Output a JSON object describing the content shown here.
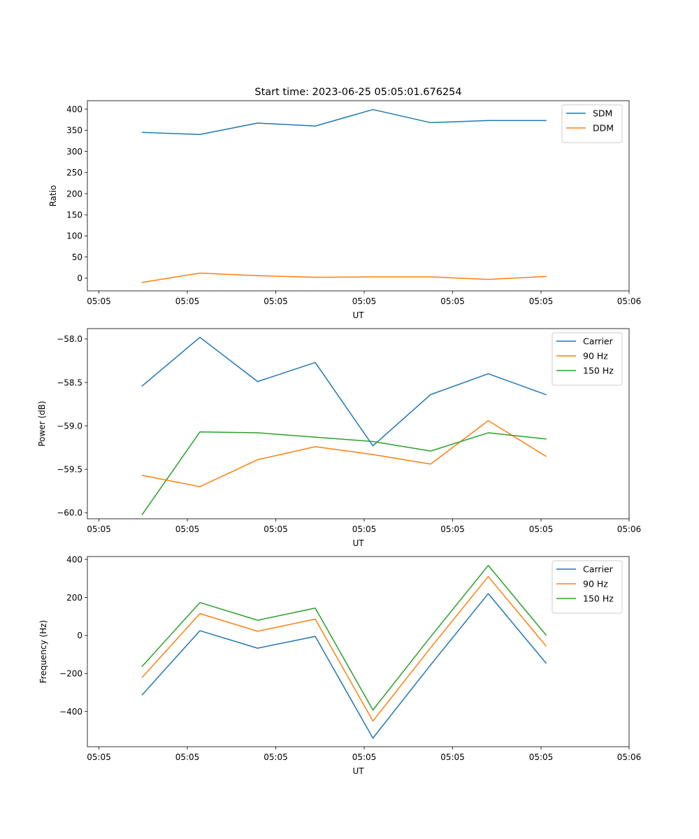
{
  "figure_title": "Start time: 2023-06-25 05:05:01.676254",
  "colors": {
    "blue": "#1f77b4",
    "orange": "#ff7f0e",
    "green": "#2ca02c"
  },
  "chart_data": [
    {
      "type": "line",
      "title": "Start time: 2023-06-25 05:05:01.676254",
      "xlabel": "UT",
      "ylabel": "Ratio",
      "x_tick_labels": [
        "05:05",
        "05:05",
        "05:05",
        "05:05",
        "05:05",
        "05:05",
        "05:05",
        "05:06"
      ],
      "ylim": [
        -30,
        420
      ],
      "y_ticks": [
        0,
        50,
        100,
        150,
        200,
        250,
        300,
        350,
        400
      ],
      "y_tick_labels": [
        "0",
        "50",
        "100",
        "150",
        "200",
        "250",
        "300",
        "350",
        "400"
      ],
      "legend_position": "top-right",
      "grid": false,
      "series": [
        {
          "name": "SDM",
          "color": "#1f77b4",
          "values": [
            345,
            340,
            367,
            360,
            399,
            368,
            373,
            373
          ]
        },
        {
          "name": "DDM",
          "color": "#ff7f0e",
          "values": [
            -10,
            12,
            6,
            2,
            3,
            3,
            -3,
            4
          ]
        }
      ]
    },
    {
      "type": "line",
      "xlabel": "UT",
      "ylabel": "Power (dB)",
      "x_tick_labels": [
        "05:05",
        "05:05",
        "05:05",
        "05:05",
        "05:05",
        "05:05",
        "05:05",
        "05:06"
      ],
      "ylim": [
        -60.07,
        -57.88
      ],
      "y_ticks": [
        -60.0,
        -59.5,
        -59.0,
        -58.5,
        -58.0
      ],
      "y_tick_labels": [
        "−60.0",
        "−59.5",
        "−59.0",
        "−58.5",
        "−58.0"
      ],
      "legend_position": "top-right",
      "grid": false,
      "series": [
        {
          "name": "Carrier",
          "color": "#1f77b4",
          "values": [
            -58.54,
            -57.98,
            -58.49,
            -58.27,
            -59.23,
            -58.64,
            -58.4,
            -58.64
          ]
        },
        {
          "name": "90 Hz",
          "color": "#ff7f0e",
          "values": [
            -59.57,
            -59.7,
            -59.39,
            -59.24,
            -59.33,
            -59.44,
            -58.94,
            -59.35
          ]
        },
        {
          "name": "150 Hz",
          "color": "#2ca02c",
          "values": [
            -60.02,
            -59.07,
            -59.08,
            -59.13,
            -59.18,
            -59.29,
            -59.08,
            -59.15
          ]
        }
      ]
    },
    {
      "type": "line",
      "xlabel": "UT",
      "ylabel": "Frequency (Hz)",
      "x_tick_labels": [
        "05:05",
        "05:05",
        "05:05",
        "05:05",
        "05:05",
        "05:05",
        "05:05",
        "05:06"
      ],
      "ylim": [
        -585,
        415
      ],
      "y_ticks": [
        -400,
        -200,
        0,
        200,
        400
      ],
      "y_tick_labels": [
        "−400",
        "−200",
        "0",
        "200",
        "400"
      ],
      "legend_position": "top-right",
      "grid": false,
      "series": [
        {
          "name": "Carrier",
          "color": "#1f77b4",
          "values": [
            -312,
            25,
            -67,
            -5,
            -540,
            -155,
            220,
            -145
          ]
        },
        {
          "name": "90 Hz",
          "color": "#ff7f0e",
          "values": [
            -220,
            115,
            22,
            86,
            -450,
            -65,
            310,
            -55
          ]
        },
        {
          "name": "150 Hz",
          "color": "#2ca02c",
          "values": [
            -162,
            173,
            80,
            144,
            -392,
            -7,
            368,
            3
          ]
        }
      ]
    }
  ]
}
